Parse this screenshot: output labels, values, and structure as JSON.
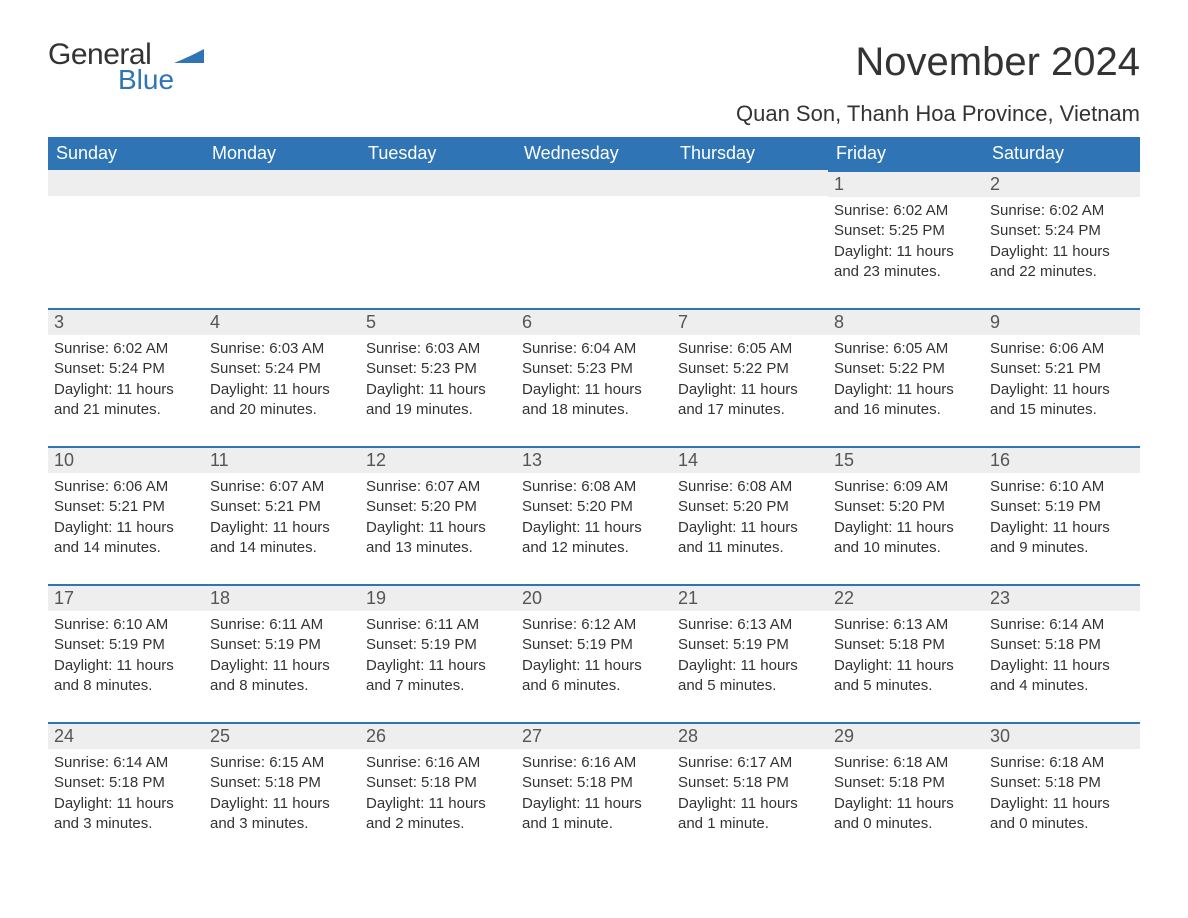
{
  "logo": {
    "text_general": "General",
    "text_blue": "Blue",
    "swoosh_color": "#2f75b5"
  },
  "title": "November 2024",
  "location": "Quan Son, Thanh Hoa Province, Vietnam",
  "colors": {
    "header_bg": "#2f75b5",
    "header_text": "#ffffff",
    "daynum_bg": "#eeeeee",
    "daynum_border": "#2f75b5",
    "body_text": "#333333",
    "page_bg": "#ffffff"
  },
  "day_headers": [
    "Sunday",
    "Monday",
    "Tuesday",
    "Wednesday",
    "Thursday",
    "Friday",
    "Saturday"
  ],
  "weeks": [
    [
      null,
      null,
      null,
      null,
      null,
      {
        "num": "1",
        "sunrise": "Sunrise: 6:02 AM",
        "sunset": "Sunset: 5:25 PM",
        "daylight": "Daylight: 11 hours and 23 minutes."
      },
      {
        "num": "2",
        "sunrise": "Sunrise: 6:02 AM",
        "sunset": "Sunset: 5:24 PM",
        "daylight": "Daylight: 11 hours and 22 minutes."
      }
    ],
    [
      {
        "num": "3",
        "sunrise": "Sunrise: 6:02 AM",
        "sunset": "Sunset: 5:24 PM",
        "daylight": "Daylight: 11 hours and 21 minutes."
      },
      {
        "num": "4",
        "sunrise": "Sunrise: 6:03 AM",
        "sunset": "Sunset: 5:24 PM",
        "daylight": "Daylight: 11 hours and 20 minutes."
      },
      {
        "num": "5",
        "sunrise": "Sunrise: 6:03 AM",
        "sunset": "Sunset: 5:23 PM",
        "daylight": "Daylight: 11 hours and 19 minutes."
      },
      {
        "num": "6",
        "sunrise": "Sunrise: 6:04 AM",
        "sunset": "Sunset: 5:23 PM",
        "daylight": "Daylight: 11 hours and 18 minutes."
      },
      {
        "num": "7",
        "sunrise": "Sunrise: 6:05 AM",
        "sunset": "Sunset: 5:22 PM",
        "daylight": "Daylight: 11 hours and 17 minutes."
      },
      {
        "num": "8",
        "sunrise": "Sunrise: 6:05 AM",
        "sunset": "Sunset: 5:22 PM",
        "daylight": "Daylight: 11 hours and 16 minutes."
      },
      {
        "num": "9",
        "sunrise": "Sunrise: 6:06 AM",
        "sunset": "Sunset: 5:21 PM",
        "daylight": "Daylight: 11 hours and 15 minutes."
      }
    ],
    [
      {
        "num": "10",
        "sunrise": "Sunrise: 6:06 AM",
        "sunset": "Sunset: 5:21 PM",
        "daylight": "Daylight: 11 hours and 14 minutes."
      },
      {
        "num": "11",
        "sunrise": "Sunrise: 6:07 AM",
        "sunset": "Sunset: 5:21 PM",
        "daylight": "Daylight: 11 hours and 14 minutes."
      },
      {
        "num": "12",
        "sunrise": "Sunrise: 6:07 AM",
        "sunset": "Sunset: 5:20 PM",
        "daylight": "Daylight: 11 hours and 13 minutes."
      },
      {
        "num": "13",
        "sunrise": "Sunrise: 6:08 AM",
        "sunset": "Sunset: 5:20 PM",
        "daylight": "Daylight: 11 hours and 12 minutes."
      },
      {
        "num": "14",
        "sunrise": "Sunrise: 6:08 AM",
        "sunset": "Sunset: 5:20 PM",
        "daylight": "Daylight: 11 hours and 11 minutes."
      },
      {
        "num": "15",
        "sunrise": "Sunrise: 6:09 AM",
        "sunset": "Sunset: 5:20 PM",
        "daylight": "Daylight: 11 hours and 10 minutes."
      },
      {
        "num": "16",
        "sunrise": "Sunrise: 6:10 AM",
        "sunset": "Sunset: 5:19 PM",
        "daylight": "Daylight: 11 hours and 9 minutes."
      }
    ],
    [
      {
        "num": "17",
        "sunrise": "Sunrise: 6:10 AM",
        "sunset": "Sunset: 5:19 PM",
        "daylight": "Daylight: 11 hours and 8 minutes."
      },
      {
        "num": "18",
        "sunrise": "Sunrise: 6:11 AM",
        "sunset": "Sunset: 5:19 PM",
        "daylight": "Daylight: 11 hours and 8 minutes."
      },
      {
        "num": "19",
        "sunrise": "Sunrise: 6:11 AM",
        "sunset": "Sunset: 5:19 PM",
        "daylight": "Daylight: 11 hours and 7 minutes."
      },
      {
        "num": "20",
        "sunrise": "Sunrise: 6:12 AM",
        "sunset": "Sunset: 5:19 PM",
        "daylight": "Daylight: 11 hours and 6 minutes."
      },
      {
        "num": "21",
        "sunrise": "Sunrise: 6:13 AM",
        "sunset": "Sunset: 5:19 PM",
        "daylight": "Daylight: 11 hours and 5 minutes."
      },
      {
        "num": "22",
        "sunrise": "Sunrise: 6:13 AM",
        "sunset": "Sunset: 5:18 PM",
        "daylight": "Daylight: 11 hours and 5 minutes."
      },
      {
        "num": "23",
        "sunrise": "Sunrise: 6:14 AM",
        "sunset": "Sunset: 5:18 PM",
        "daylight": "Daylight: 11 hours and 4 minutes."
      }
    ],
    [
      {
        "num": "24",
        "sunrise": "Sunrise: 6:14 AM",
        "sunset": "Sunset: 5:18 PM",
        "daylight": "Daylight: 11 hours and 3 minutes."
      },
      {
        "num": "25",
        "sunrise": "Sunrise: 6:15 AM",
        "sunset": "Sunset: 5:18 PM",
        "daylight": "Daylight: 11 hours and 3 minutes."
      },
      {
        "num": "26",
        "sunrise": "Sunrise: 6:16 AM",
        "sunset": "Sunset: 5:18 PM",
        "daylight": "Daylight: 11 hours and 2 minutes."
      },
      {
        "num": "27",
        "sunrise": "Sunrise: 6:16 AM",
        "sunset": "Sunset: 5:18 PM",
        "daylight": "Daylight: 11 hours and 1 minute."
      },
      {
        "num": "28",
        "sunrise": "Sunrise: 6:17 AM",
        "sunset": "Sunset: 5:18 PM",
        "daylight": "Daylight: 11 hours and 1 minute."
      },
      {
        "num": "29",
        "sunrise": "Sunrise: 6:18 AM",
        "sunset": "Sunset: 5:18 PM",
        "daylight": "Daylight: 11 hours and 0 minutes."
      },
      {
        "num": "30",
        "sunrise": "Sunrise: 6:18 AM",
        "sunset": "Sunset: 5:18 PM",
        "daylight": "Daylight: 11 hours and 0 minutes."
      }
    ]
  ]
}
